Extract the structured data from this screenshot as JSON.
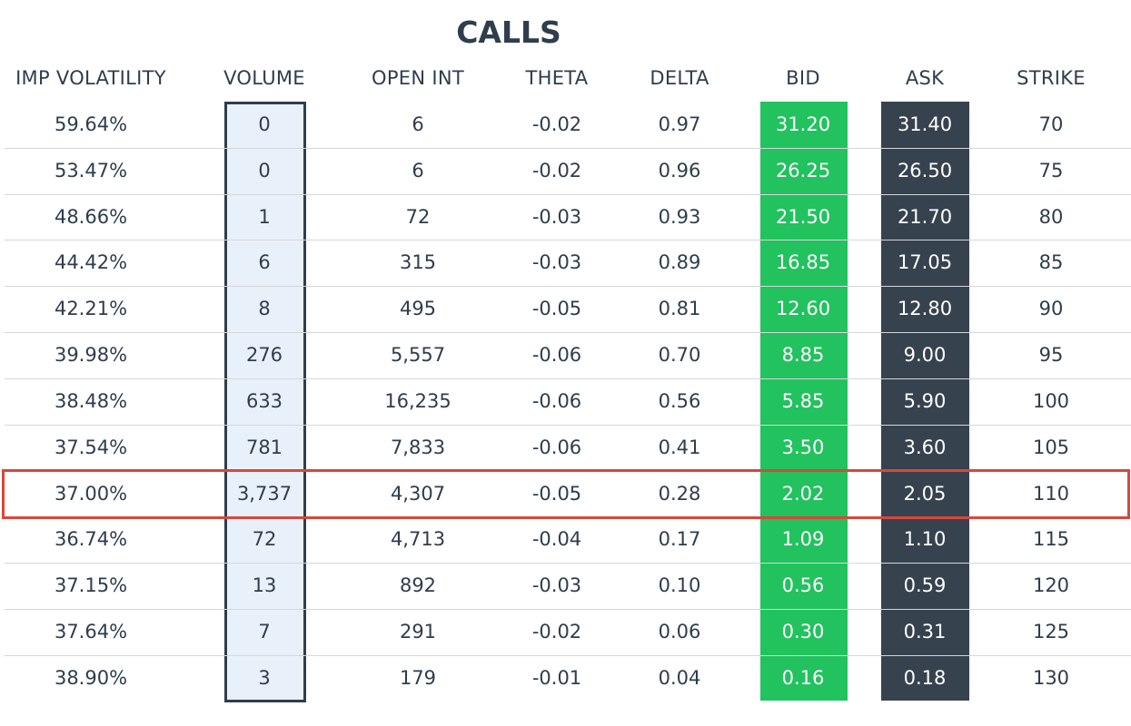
{
  "title": "CALLS",
  "table": {
    "headers": [
      "IMP VOLATILITY",
      "VOLUME",
      "OPEN INT",
      "THETA",
      "DELTA",
      "BID",
      "ASK",
      "STRIKE"
    ],
    "rows": [
      [
        "59.64%",
        "0",
        "6",
        "-0.02",
        "0.97",
        "31.20",
        "31.40",
        "70"
      ],
      [
        "53.47%",
        "0",
        "6",
        "-0.02",
        "0.96",
        "26.25",
        "26.50",
        "75"
      ],
      [
        "48.66%",
        "1",
        "72",
        "-0.03",
        "0.93",
        "21.50",
        "21.70",
        "80"
      ],
      [
        "44.42%",
        "6",
        "315",
        "-0.03",
        "0.89",
        "16.85",
        "17.05",
        "85"
      ],
      [
        "42.21%",
        "8",
        "495",
        "-0.05",
        "0.81",
        "12.60",
        "12.80",
        "90"
      ],
      [
        "39.98%",
        "276",
        "5,557",
        "-0.06",
        "0.70",
        "8.85",
        "9.00",
        "95"
      ],
      [
        "38.48%",
        "633",
        "16,235",
        "-0.06",
        "0.56",
        "5.85",
        "5.90",
        "100"
      ],
      [
        "37.54%",
        "781",
        "7,833",
        "-0.06",
        "0.41",
        "3.50",
        "3.60",
        "105"
      ],
      [
        "37.00%",
        "3,737",
        "4,307",
        "-0.05",
        "0.28",
        "2.02",
        "2.05",
        "110"
      ],
      [
        "36.74%",
        "72",
        "4,713",
        "-0.04",
        "0.17",
        "1.09",
        "1.10",
        "115"
      ],
      [
        "37.15%",
        "13",
        "892",
        "-0.03",
        "0.10",
        "0.56",
        "0.59",
        "120"
      ],
      [
        "37.64%",
        "7",
        "291",
        "-0.02",
        "0.06",
        "0.30",
        "0.31",
        "125"
      ],
      [
        "38.90%",
        "3",
        "179",
        "-0.01",
        "0.04",
        "0.16",
        "0.18",
        "130"
      ]
    ]
  }
}
